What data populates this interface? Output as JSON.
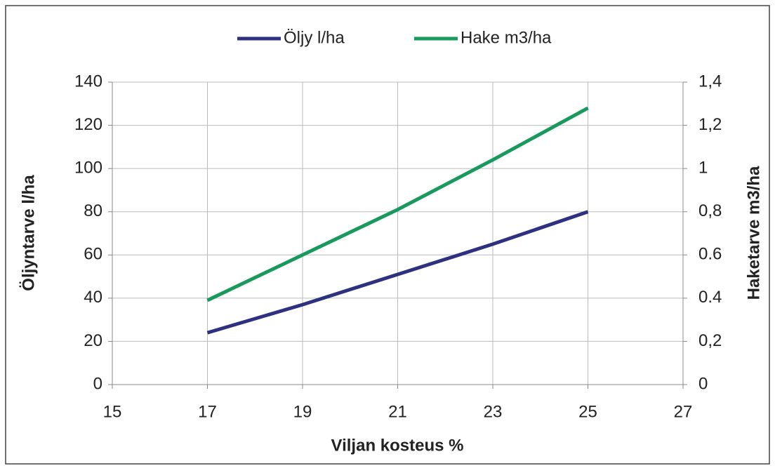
{
  "chart_data": {
    "type": "line",
    "xlabel": "Viljan kosteus %",
    "ylabel": "Öljyntarve l/ha",
    "y2label": "Haketarve m3/ha",
    "x": [
      17,
      19,
      21,
      23,
      25
    ],
    "series": [
      {
        "name": "Öljy l/ha",
        "color": "#2e3180",
        "values": [
          24,
          37,
          51,
          65,
          80
        ]
      },
      {
        "name": "Hake m3/ha",
        "color": "#179a5c",
        "axis": "y2",
        "values": [
          0.39,
          0.6,
          0.81,
          1.04,
          1.28
        ]
      }
    ],
    "xlim": [
      15,
      27
    ],
    "xticks": [
      15,
      17,
      19,
      21,
      23,
      25,
      27
    ],
    "ylim": [
      0,
      140
    ],
    "yticks": [
      0,
      20,
      40,
      60,
      80,
      100,
      120,
      140
    ],
    "y2lim": [
      0,
      1.4
    ],
    "y2ticks": [
      0,
      {
        "value": 0.2,
        "label": "0,2"
      },
      0.4,
      0.6,
      {
        "value": 0.8,
        "label": "0,8"
      },
      1,
      {
        "value": 1.2,
        "label": "1,2"
      },
      {
        "value": 1.4,
        "label": "1,4"
      }
    ],
    "grid": true,
    "legend": "top"
  }
}
